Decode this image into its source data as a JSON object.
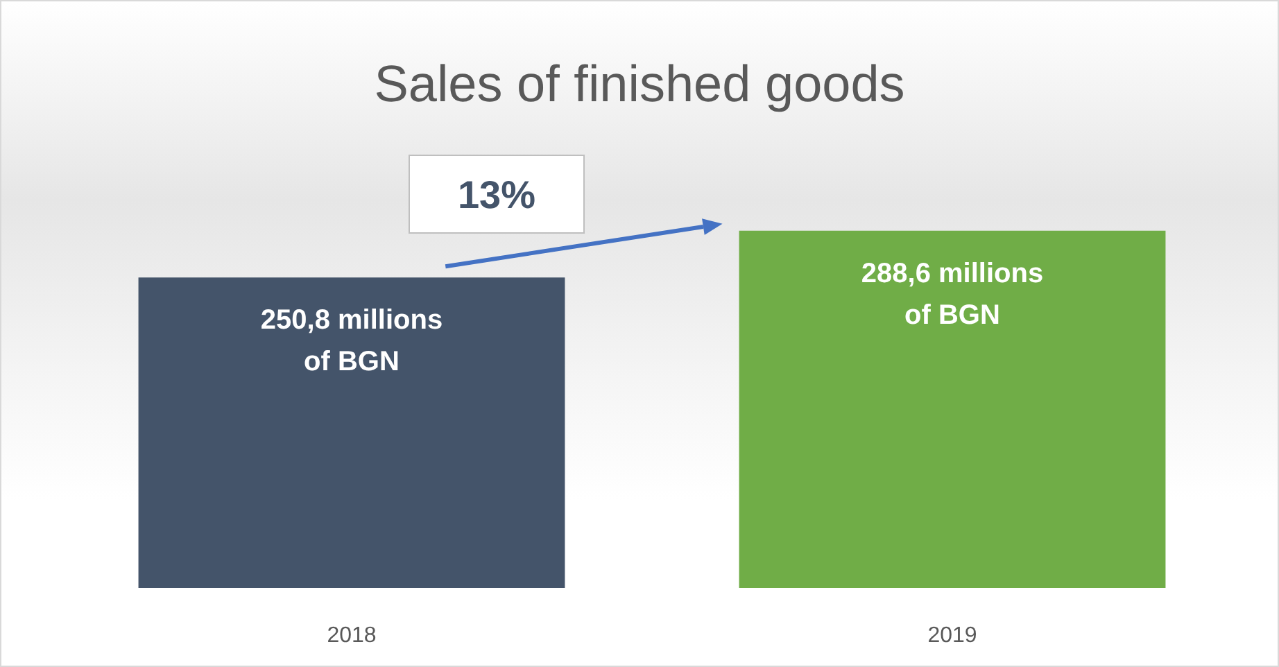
{
  "chart_data": {
    "type": "bar",
    "title": "Sales of finished goods",
    "categories": [
      "2018",
      "2019"
    ],
    "values": [
      250.8,
      288.6
    ],
    "colors": [
      "#44546a",
      "#70ad47"
    ],
    "value_labels": [
      "250,8 millions of BGN",
      "288,6 millions of BGN"
    ],
    "tick_labels": "x",
    "annotations": [
      "13%"
    ]
  }
}
